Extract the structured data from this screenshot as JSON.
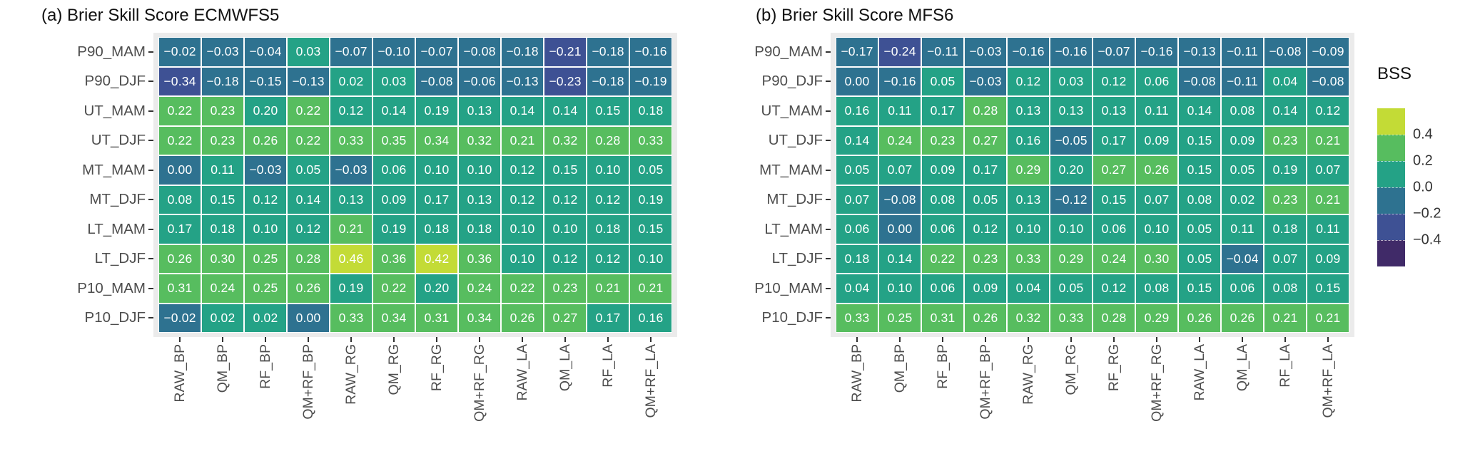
{
  "legend": {
    "title": "BSS",
    "tick_labels": [
      "0.4",
      "0.2",
      "0.0",
      "−0.2",
      "−0.4"
    ]
  },
  "colors": {
    "panel_background": "#ebebeb",
    "cell_text": "#ffffff",
    "axis_text": "#4d4d4d",
    "title_text": "#111111",
    "color_bins": [
      {
        "above": 0.4,
        "hex": "#c3db36"
      },
      {
        "above": 0.2,
        "hex": "#57bd5f"
      },
      {
        "above": 0.0,
        "hex": "#24a286"
      },
      {
        "above": -0.2,
        "hex": "#2e7290"
      },
      {
        "above": -0.4,
        "hex": "#3e5194"
      },
      {
        "above": -0.6,
        "hex": "#402a68"
      }
    ]
  },
  "chart_data": [
    {
      "type": "heatmap",
      "title": "(a) Brier Skill Score ECMWFS5",
      "legend_title": "BSS",
      "color_scale": "viridis binned",
      "bin_edges": [
        -0.6,
        -0.4,
        -0.2,
        0.0,
        0.2,
        0.4,
        0.6
      ],
      "x_categories": [
        "RAW_BP",
        "QM_BP",
        "RF_BP",
        "QM+RF_BP",
        "RAW_RG",
        "QM_RG",
        "RF_RG",
        "QM+RF_RG",
        "RAW_LA",
        "QM_LA",
        "RF_LA",
        "QM+RF_LA"
      ],
      "y_categories": [
        "P90_MAM",
        "P90_DJF",
        "UT_MAM",
        "UT_DJF",
        "MT_MAM",
        "MT_DJF",
        "LT_MAM",
        "LT_DJF",
        "P10_MAM",
        "P10_DJF"
      ],
      "values": [
        [
          -0.02,
          -0.03,
          -0.04,
          0.03,
          -0.07,
          -0.1,
          -0.07,
          -0.08,
          -0.18,
          -0.21,
          -0.18,
          -0.16
        ],
        [
          -0.34,
          -0.18,
          -0.15,
          -0.13,
          0.02,
          0.03,
          -0.08,
          -0.06,
          -0.13,
          -0.23,
          -0.18,
          -0.19
        ],
        [
          0.22,
          0.23,
          0.2,
          0.22,
          0.12,
          0.14,
          0.19,
          0.13,
          0.14,
          0.14,
          0.15,
          0.18
        ],
        [
          0.22,
          0.23,
          0.26,
          0.22,
          0.33,
          0.35,
          0.34,
          0.32,
          0.21,
          0.32,
          0.28,
          0.33
        ],
        [
          0.0,
          0.11,
          -0.03,
          0.05,
          -0.03,
          0.06,
          0.1,
          0.1,
          0.12,
          0.15,
          0.1,
          0.05
        ],
        [
          0.08,
          0.15,
          0.12,
          0.14,
          0.13,
          0.09,
          0.17,
          0.13,
          0.12,
          0.12,
          0.12,
          0.19
        ],
        [
          0.17,
          0.18,
          0.1,
          0.12,
          0.21,
          0.19,
          0.18,
          0.18,
          0.1,
          0.1,
          0.18,
          0.15
        ],
        [
          0.26,
          0.3,
          0.25,
          0.28,
          0.46,
          0.36,
          0.42,
          0.36,
          0.1,
          0.12,
          0.12,
          0.1
        ],
        [
          0.31,
          0.24,
          0.25,
          0.26,
          0.19,
          0.22,
          0.2,
          0.24,
          0.22,
          0.23,
          0.21,
          0.21
        ],
        [
          -0.02,
          0.02,
          0.02,
          0.0,
          0.33,
          0.34,
          0.31,
          0.34,
          0.26,
          0.27,
          0.17,
          0.16
        ]
      ]
    },
    {
      "type": "heatmap",
      "title": "(b) Brier Skill Score MFS6",
      "legend_title": "BSS",
      "color_scale": "viridis binned",
      "bin_edges": [
        -0.6,
        -0.4,
        -0.2,
        0.0,
        0.2,
        0.4,
        0.6
      ],
      "x_categories": [
        "RAW_BP",
        "QM_BP",
        "RF_BP",
        "QM+RF_BP",
        "RAW_RG",
        "QM_RG",
        "RF_RG",
        "QM+RF_RG",
        "RAW_LA",
        "QM_LA",
        "RF_LA",
        "QM+RF_LA"
      ],
      "y_categories": [
        "P90_MAM",
        "P90_DJF",
        "UT_MAM",
        "UT_DJF",
        "MT_MAM",
        "MT_DJF",
        "LT_MAM",
        "LT_DJF",
        "P10_MAM",
        "P10_DJF"
      ],
      "values": [
        [
          -0.17,
          -0.24,
          -0.11,
          -0.03,
          -0.16,
          -0.16,
          -0.07,
          -0.16,
          -0.13,
          -0.11,
          -0.08,
          -0.09
        ],
        [
          0.0,
          -0.16,
          0.05,
          -0.03,
          0.12,
          0.03,
          0.12,
          0.06,
          -0.08,
          -0.11,
          0.04,
          -0.08
        ],
        [
          0.16,
          0.11,
          0.17,
          0.28,
          0.13,
          0.13,
          0.13,
          0.11,
          0.14,
          0.08,
          0.14,
          0.12
        ],
        [
          0.14,
          0.24,
          0.23,
          0.27,
          0.16,
          -0.05,
          0.17,
          0.09,
          0.15,
          0.09,
          0.23,
          0.21
        ],
        [
          0.05,
          0.07,
          0.09,
          0.17,
          0.29,
          0.2,
          0.27,
          0.26,
          0.15,
          0.05,
          0.19,
          0.07
        ],
        [
          0.07,
          -0.08,
          0.08,
          0.05,
          0.13,
          -0.12,
          0.15,
          0.07,
          0.08,
          0.02,
          0.23,
          0.21
        ],
        [
          0.06,
          0.0,
          0.06,
          0.12,
          0.1,
          0.1,
          0.06,
          0.1,
          0.05,
          0.11,
          0.18,
          0.11
        ],
        [
          0.18,
          0.14,
          0.22,
          0.23,
          0.33,
          0.29,
          0.24,
          0.3,
          0.05,
          -0.04,
          0.07,
          0.09
        ],
        [
          0.04,
          0.1,
          0.06,
          0.09,
          0.04,
          0.05,
          0.12,
          0.08,
          0.15,
          0.06,
          0.08,
          0.15
        ],
        [
          0.33,
          0.25,
          0.31,
          0.26,
          0.32,
          0.33,
          0.28,
          0.29,
          0.26,
          0.26,
          0.21,
          0.21
        ]
      ]
    }
  ]
}
